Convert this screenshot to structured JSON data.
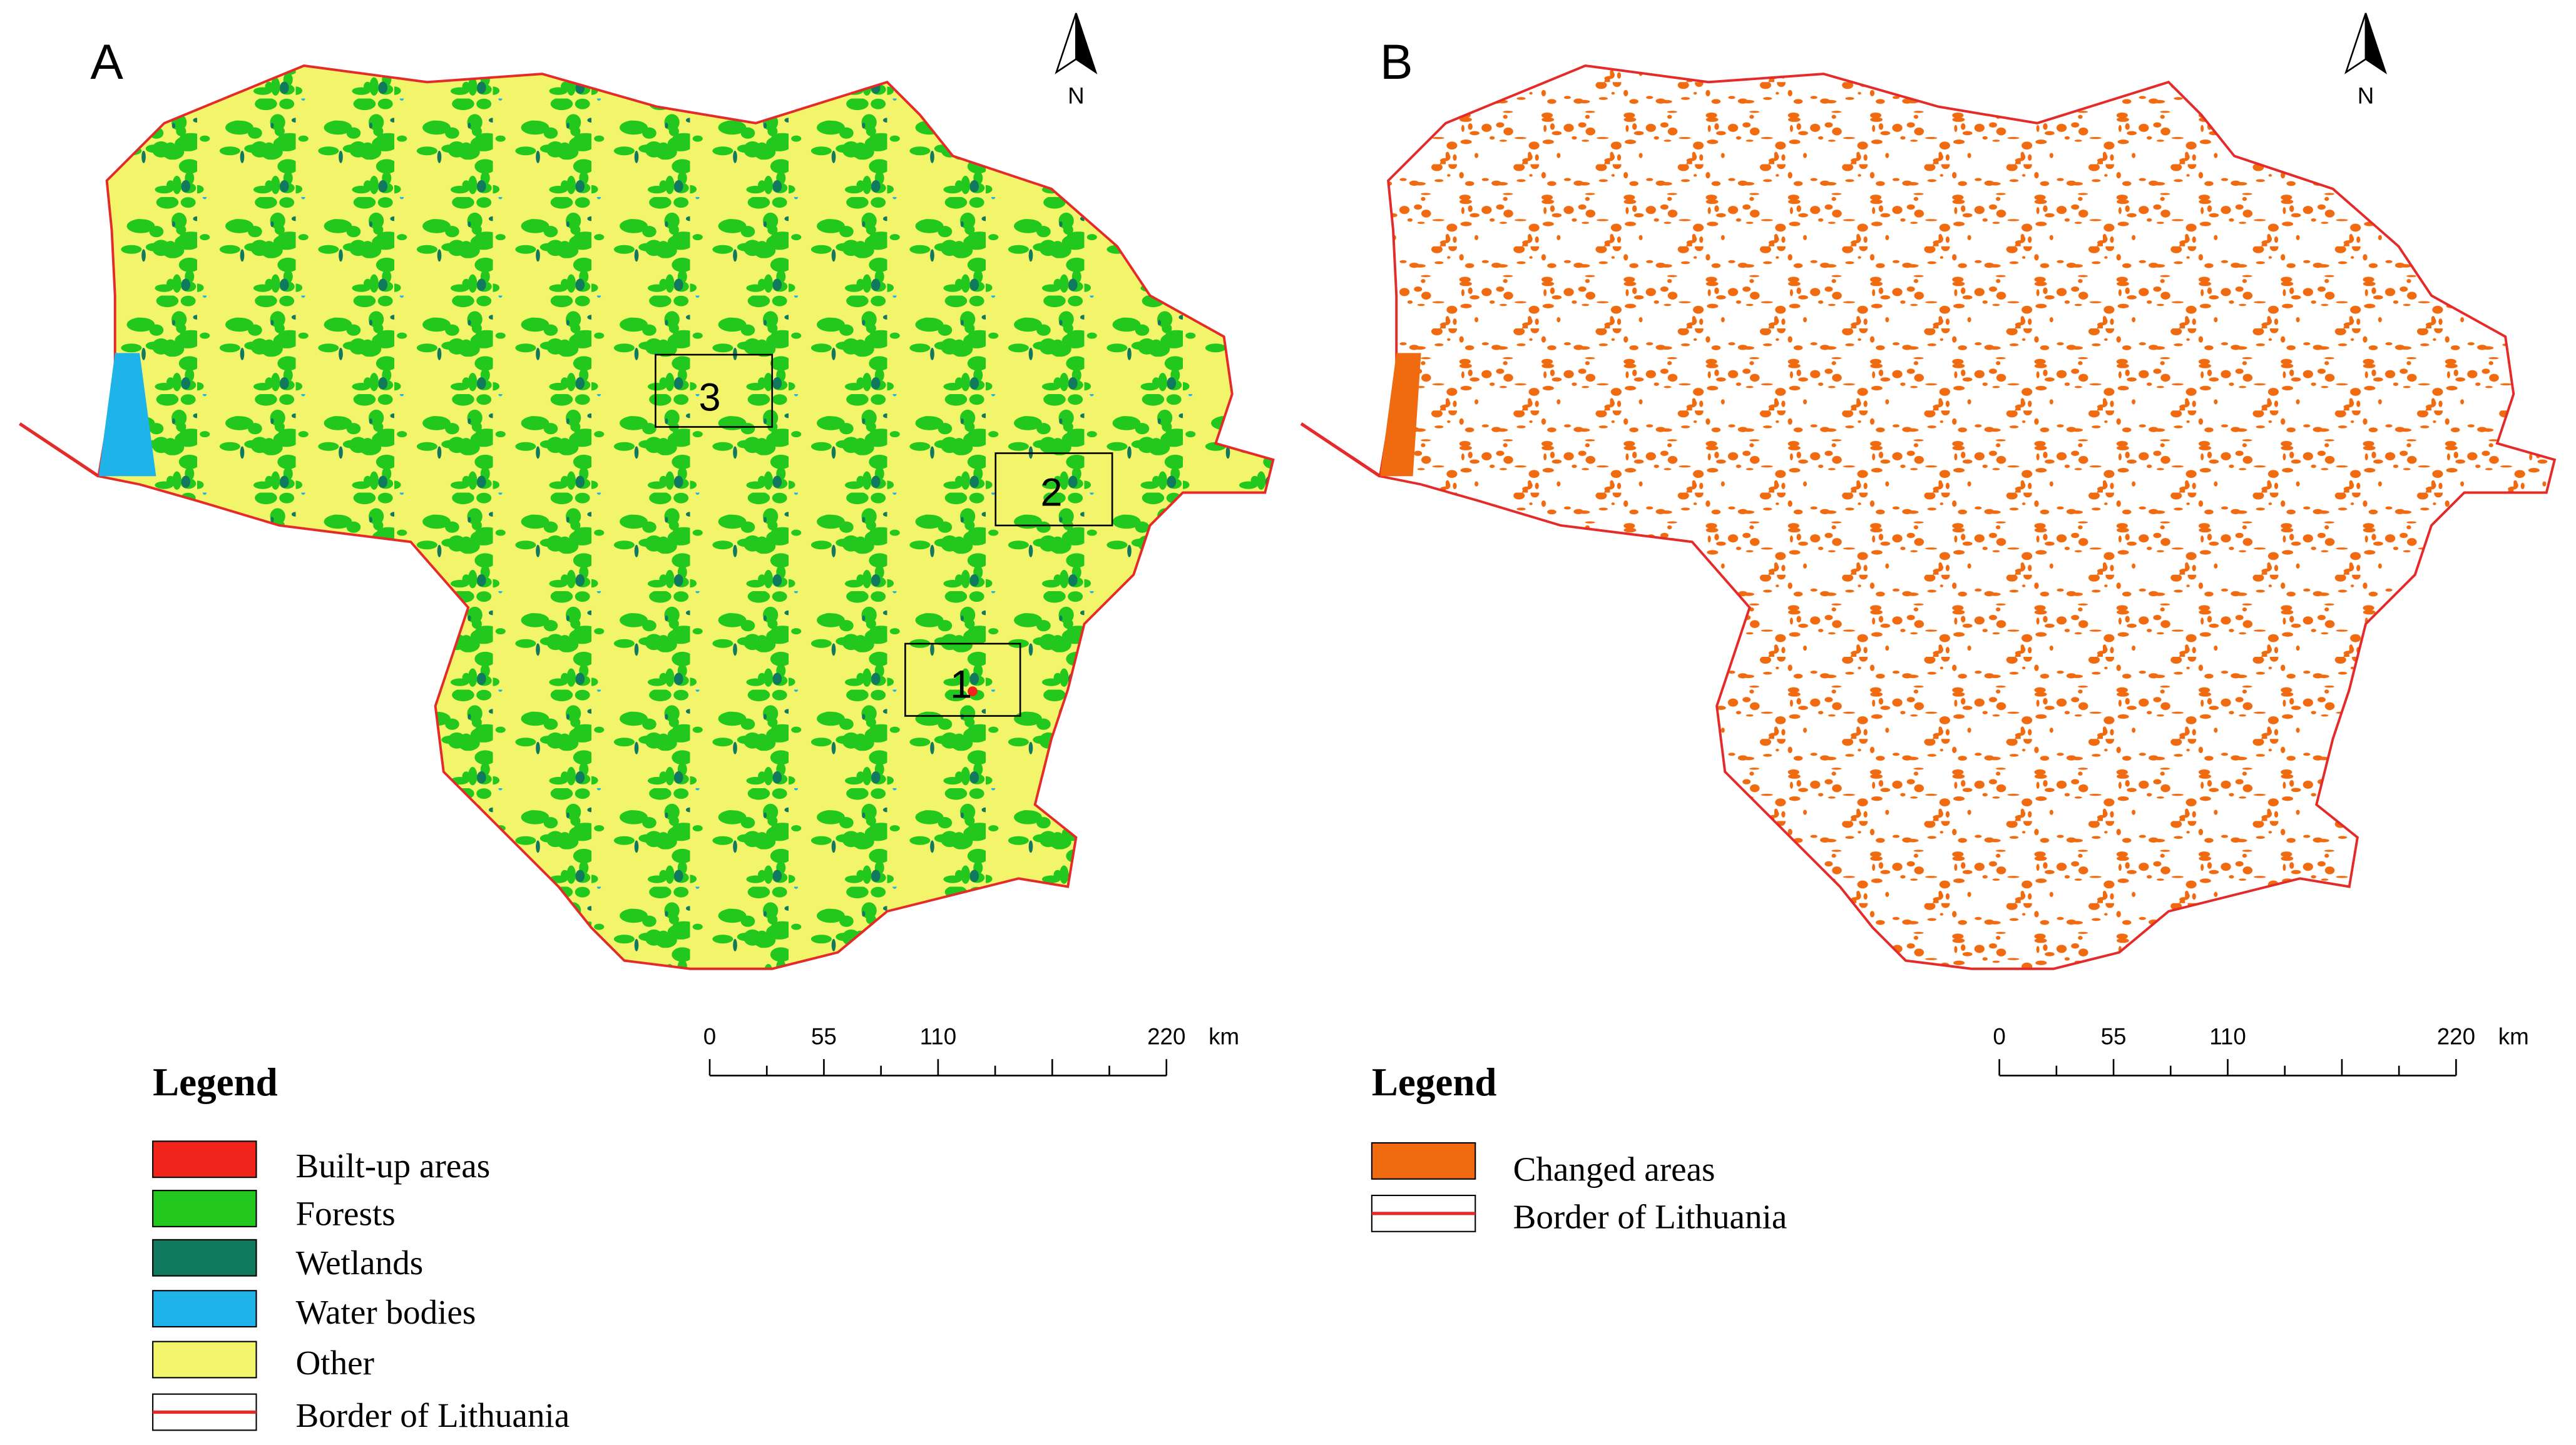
{
  "panels": [
    {
      "label": "A",
      "north": "N",
      "scale": {
        "ticks": [
          "0",
          "55",
          "110",
          "220"
        ],
        "unit": "km"
      },
      "boxes": [
        "3",
        "2",
        "1"
      ],
      "legend": {
        "title": "Legend",
        "items": [
          "Built-up areas",
          "Forests",
          "Wetlands",
          "Water bodies",
          "Other",
          "Border of Lithuania"
        ]
      }
    },
    {
      "label": "B",
      "north": "N",
      "scale": {
        "ticks": [
          "0",
          "55",
          "110",
          "220"
        ],
        "unit": "km"
      },
      "legend": {
        "title": "Legend",
        "items": [
          "Changed areas",
          "Border of Lithuania"
        ]
      }
    }
  ]
}
